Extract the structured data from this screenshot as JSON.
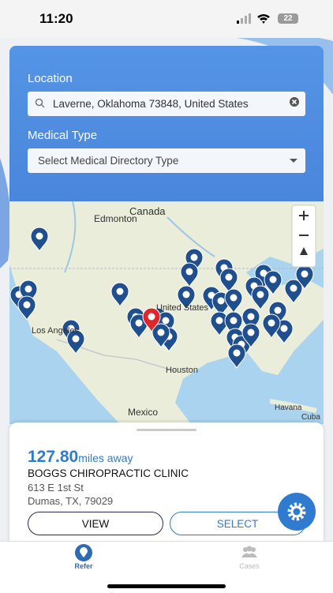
{
  "status_bar": {
    "time": "11:20",
    "battery": "22"
  },
  "form": {
    "location_label": "Location",
    "location_value": "Laverne, Oklahoma 73848, United States",
    "medical_type_label": "Medical Type",
    "medical_type_placeholder": "Select Medical Directory Type"
  },
  "map": {
    "labels": [
      "Edmonton",
      "Canada",
      "United States",
      "Los Angeles",
      "Houston",
      "Mexico",
      "Havana",
      "Cuba"
    ]
  },
  "result": {
    "distance": "127.80",
    "distance_unit": "miles away",
    "name": "BOGGS CHIROPRACTIC CLINIC",
    "address_line1": "613 E 1st St",
    "address_line2": "Dumas, TX, 79029",
    "view_button": "VIEW",
    "select_button": "SELECT"
  },
  "tabs": [
    "Refer",
    "Cases"
  ]
}
